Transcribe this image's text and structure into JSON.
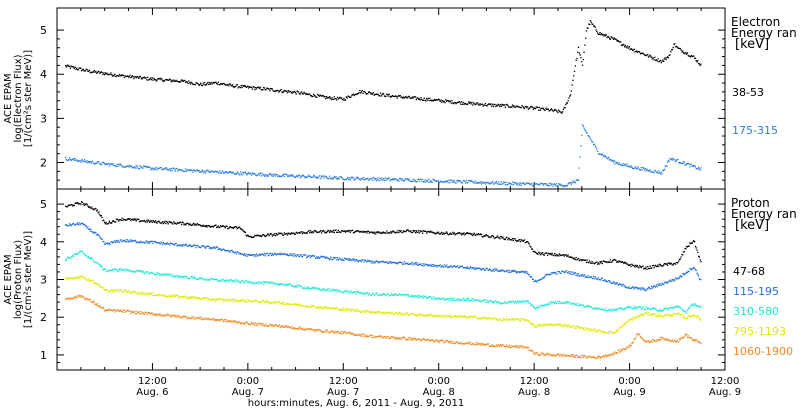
{
  "chart_data": {
    "type": "scatter",
    "x_axis": {
      "label": "hours:minutes, Aug.  6, 2011 - Aug.  9, 2011",
      "range_hours": [
        0,
        84
      ],
      "ticks": [
        {
          "hour": 12,
          "time": "12:00",
          "day": "Aug. 6"
        },
        {
          "hour": 24,
          "time": "0:00",
          "day": "Aug. 7"
        },
        {
          "hour": 36,
          "time": "12:00",
          "day": "Aug. 7"
        },
        {
          "hour": 48,
          "time": "0:00",
          "day": "Aug. 8"
        },
        {
          "hour": 60,
          "time": "12:00",
          "day": "Aug. 8"
        },
        {
          "hour": 72,
          "time": "0:00",
          "day": "Aug. 9"
        },
        {
          "hour": 84,
          "time": "12:00",
          "day": "Aug. 9"
        }
      ]
    },
    "panels": [
      {
        "name": "electron",
        "ylabel": [
          "ACE EPAM",
          "log(Electron Flux)",
          "[1/(cm²s ster MeV)]"
        ],
        "ylim": [
          1.4,
          5.5
        ],
        "yticks": [
          2,
          3,
          4,
          5
        ],
        "legend_title": [
          "Electron",
          "Energy ran",
          "[keV]"
        ],
        "series": [
          {
            "name": "38-53",
            "color": "#000000",
            "points": [
              [
                1,
                4.2
              ],
              [
                4,
                4.08
              ],
              [
                8,
                3.98
              ],
              [
                12,
                3.9
              ],
              [
                16,
                3.85
              ],
              [
                18,
                3.78
              ],
              [
                20,
                3.82
              ],
              [
                22,
                3.75
              ],
              [
                26,
                3.68
              ],
              [
                30,
                3.6
              ],
              [
                34,
                3.48
              ],
              [
                36,
                3.45
              ],
              [
                38,
                3.62
              ],
              [
                42,
                3.52
              ],
              [
                46,
                3.45
              ],
              [
                50,
                3.38
              ],
              [
                54,
                3.32
              ],
              [
                58,
                3.28
              ],
              [
                62,
                3.2
              ],
              [
                63.5,
                3.15
              ],
              [
                64.5,
                3.55
              ],
              [
                65,
                4.1
              ],
              [
                65.5,
                4.6
              ],
              [
                66,
                4.2
              ],
              [
                66.5,
                5.0
              ],
              [
                67,
                5.2
              ],
              [
                68,
                4.95
              ],
              [
                70,
                4.8
              ],
              [
                72,
                4.6
              ],
              [
                74,
                4.45
              ],
              [
                76,
                4.3
              ],
              [
                77,
                4.45
              ],
              [
                77.5,
                4.7
              ],
              [
                78,
                4.6
              ],
              [
                80,
                4.4
              ],
              [
                81,
                4.2
              ]
            ]
          },
          {
            "name": "175-315",
            "color": "#2b7fdd",
            "points": [
              [
                1,
                2.1
              ],
              [
                6,
                1.98
              ],
              [
                12,
                1.88
              ],
              [
                20,
                1.8
              ],
              [
                28,
                1.72
              ],
              [
                36,
                1.66
              ],
              [
                44,
                1.62
              ],
              [
                52,
                1.57
              ],
              [
                60,
                1.52
              ],
              [
                64,
                1.5
              ],
              [
                65.5,
                1.62
              ],
              [
                66,
                2.85
              ],
              [
                67,
                2.55
              ],
              [
                68,
                2.25
              ],
              [
                70,
                2.02
              ],
              [
                72,
                1.92
              ],
              [
                74,
                1.85
              ],
              [
                76,
                1.78
              ],
              [
                77,
                2.1
              ],
              [
                78,
                2.05
              ],
              [
                80,
                1.92
              ],
              [
                81,
                1.85
              ]
            ]
          }
        ]
      },
      {
        "name": "proton",
        "ylabel": [
          "ACE EPAM",
          "log(Proton Flux)",
          "[1/(cm²s ster MeV)]"
        ],
        "ylim": [
          0.6,
          5.4
        ],
        "yticks": [
          1,
          2,
          3,
          4,
          5
        ],
        "legend_title": [
          "Proton",
          "Energy ran",
          "[keV]"
        ],
        "series": [
          {
            "name": "47-68",
            "color": "#000000",
            "points": [
              [
                1,
                4.95
              ],
              [
                3,
                5.05
              ],
              [
                5,
                4.85
              ],
              [
                6,
                4.5
              ],
              [
                8,
                4.62
              ],
              [
                12,
                4.55
              ],
              [
                16,
                4.5
              ],
              [
                20,
                4.42
              ],
              [
                23,
                4.38
              ],
              [
                24,
                4.15
              ],
              [
                28,
                4.22
              ],
              [
                32,
                4.28
              ],
              [
                36,
                4.3
              ],
              [
                40,
                4.26
              ],
              [
                44,
                4.3
              ],
              [
                48,
                4.25
              ],
              [
                52,
                4.22
              ],
              [
                56,
                4.12
              ],
              [
                59,
                4.02
              ],
              [
                60,
                3.72
              ],
              [
                62,
                3.68
              ],
              [
                64,
                3.65
              ],
              [
                66,
                3.52
              ],
              [
                68,
                3.45
              ],
              [
                70,
                3.52
              ],
              [
                72,
                3.4
              ],
              [
                74,
                3.32
              ],
              [
                76,
                3.4
              ],
              [
                78,
                3.45
              ],
              [
                79,
                3.85
              ],
              [
                80,
                4.05
              ],
              [
                81,
                3.4
              ]
            ]
          },
          {
            "name": "115-195",
            "color": "#1f6fd8",
            "points": [
              [
                1,
                4.45
              ],
              [
                3,
                4.5
              ],
              [
                5,
                4.2
              ],
              [
                6,
                3.95
              ],
              [
                8,
                4.05
              ],
              [
                12,
                4.0
              ],
              [
                16,
                3.92
              ],
              [
                20,
                3.85
              ],
              [
                24,
                3.65
              ],
              [
                28,
                3.7
              ],
              [
                32,
                3.62
              ],
              [
                36,
                3.55
              ],
              [
                40,
                3.48
              ],
              [
                44,
                3.45
              ],
              [
                48,
                3.38
              ],
              [
                52,
                3.32
              ],
              [
                56,
                3.25
              ],
              [
                59,
                3.2
              ],
              [
                60,
                2.95
              ],
              [
                62,
                3.18
              ],
              [
                64,
                3.22
              ],
              [
                66,
                3.12
              ],
              [
                68,
                3.05
              ],
              [
                70,
                2.92
              ],
              [
                72,
                2.8
              ],
              [
                74,
                2.75
              ],
              [
                76,
                2.9
              ],
              [
                78,
                3.05
              ],
              [
                79,
                3.2
              ],
              [
                80,
                3.35
              ],
              [
                81,
                2.95
              ]
            ]
          },
          {
            "name": "310-580",
            "color": "#1ee8d8",
            "points": [
              [
                1,
                3.55
              ],
              [
                3,
                3.75
              ],
              [
                5,
                3.45
              ],
              [
                6,
                3.25
              ],
              [
                8,
                3.28
              ],
              [
                12,
                3.18
              ],
              [
                16,
                3.08
              ],
              [
                20,
                3.0
              ],
              [
                24,
                2.95
              ],
              [
                28,
                2.9
              ],
              [
                32,
                2.78
              ],
              [
                36,
                2.7
              ],
              [
                40,
                2.62
              ],
              [
                44,
                2.6
              ],
              [
                48,
                2.5
              ],
              [
                52,
                2.48
              ],
              [
                56,
                2.4
              ],
              [
                59,
                2.45
              ],
              [
                60,
                2.25
              ],
              [
                62,
                2.4
              ],
              [
                64,
                2.42
              ],
              [
                66,
                2.32
              ],
              [
                68,
                2.25
              ],
              [
                70,
                2.2
              ],
              [
                72,
                2.28
              ],
              [
                74,
                2.25
              ],
              [
                76,
                2.2
              ],
              [
                78,
                2.3
              ],
              [
                79,
                2.15
              ],
              [
                80,
                2.38
              ],
              [
                81,
                2.25
              ]
            ]
          },
          {
            "name": "795-1193",
            "color": "#e0e800",
            "points": [
              [
                1,
                3.02
              ],
              [
                3,
                3.1
              ],
              [
                5,
                2.9
              ],
              [
                6,
                2.72
              ],
              [
                8,
                2.72
              ],
              [
                12,
                2.62
              ],
              [
                16,
                2.55
              ],
              [
                20,
                2.48
              ],
              [
                24,
                2.45
              ],
              [
                28,
                2.4
              ],
              [
                32,
                2.3
              ],
              [
                36,
                2.22
              ],
              [
                40,
                2.15
              ],
              [
                44,
                2.1
              ],
              [
                48,
                2.05
              ],
              [
                52,
                2.02
              ],
              [
                56,
                1.95
              ],
              [
                59,
                1.95
              ],
              [
                60,
                1.78
              ],
              [
                62,
                1.82
              ],
              [
                64,
                1.8
              ],
              [
                66,
                1.72
              ],
              [
                68,
                1.65
              ],
              [
                70,
                1.6
              ],
              [
                72,
                1.95
              ],
              [
                74,
                2.12
              ],
              [
                76,
                2.05
              ],
              [
                78,
                2.1
              ],
              [
                79,
                2.0
              ],
              [
                80,
                2.08
              ],
              [
                81,
                1.95
              ]
            ]
          },
          {
            "name": "1060-1900",
            "color": "#f08a20",
            "points": [
              [
                1,
                2.5
              ],
              [
                3,
                2.58
              ],
              [
                5,
                2.35
              ],
              [
                6,
                2.2
              ],
              [
                8,
                2.18
              ],
              [
                12,
                2.1
              ],
              [
                16,
                2.02
              ],
              [
                20,
                1.95
              ],
              [
                24,
                1.85
              ],
              [
                28,
                1.78
              ],
              [
                32,
                1.68
              ],
              [
                36,
                1.6
              ],
              [
                40,
                1.5
              ],
              [
                44,
                1.45
              ],
              [
                48,
                1.38
              ],
              [
                52,
                1.32
              ],
              [
                56,
                1.25
              ],
              [
                59,
                1.22
              ],
              [
                60,
                1.05
              ],
              [
                62,
                1.02
              ],
              [
                64,
                1.0
              ],
              [
                66,
                0.97
              ],
              [
                68,
                0.95
              ],
              [
                70,
                1.05
              ],
              [
                72,
                1.25
              ],
              [
                73,
                1.6
              ],
              [
                74,
                1.35
              ],
              [
                76,
                1.45
              ],
              [
                78,
                1.38
              ],
              [
                79,
                1.55
              ],
              [
                80,
                1.4
              ],
              [
                81,
                1.35
              ]
            ]
          }
        ]
      }
    ]
  }
}
